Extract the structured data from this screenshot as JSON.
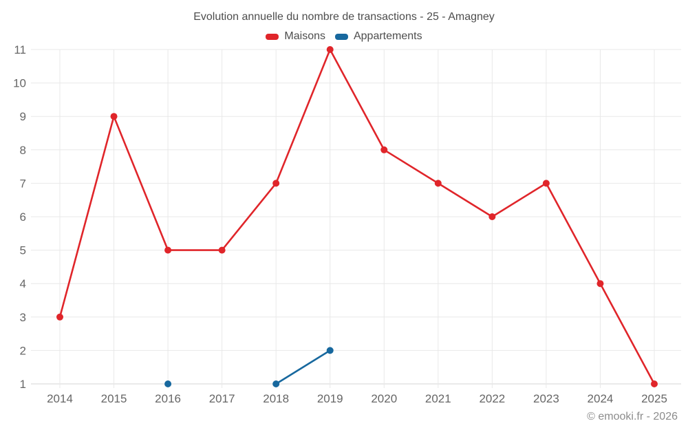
{
  "chart_data": {
    "type": "line",
    "title": "Evolution annuelle du nombre de transactions - 25 - Amagney",
    "xlabel": "",
    "ylabel": "",
    "categories": [
      "2014",
      "2015",
      "2016",
      "2017",
      "2018",
      "2019",
      "2020",
      "2021",
      "2022",
      "2023",
      "2024",
      "2025"
    ],
    "ylim": [
      1,
      11
    ],
    "ytick_step": 1,
    "grid": true,
    "legend_position": "top",
    "series": [
      {
        "name": "Maisons",
        "color": "#e0252a",
        "values": [
          3,
          9,
          5,
          5,
          7,
          11,
          8,
          7,
          6,
          7,
          4,
          1
        ]
      },
      {
        "name": "Appartements",
        "color": "#17689e",
        "values": [
          null,
          null,
          1,
          null,
          1,
          2,
          null,
          null,
          null,
          null,
          null,
          null
        ]
      }
    ]
  },
  "footer": {
    "copyright": "© emooki.fr - 2026"
  },
  "style_colors": {
    "grid_line": "#e8e8e8",
    "axis_line": "#d6d6d6",
    "tick_label": "#666666"
  }
}
